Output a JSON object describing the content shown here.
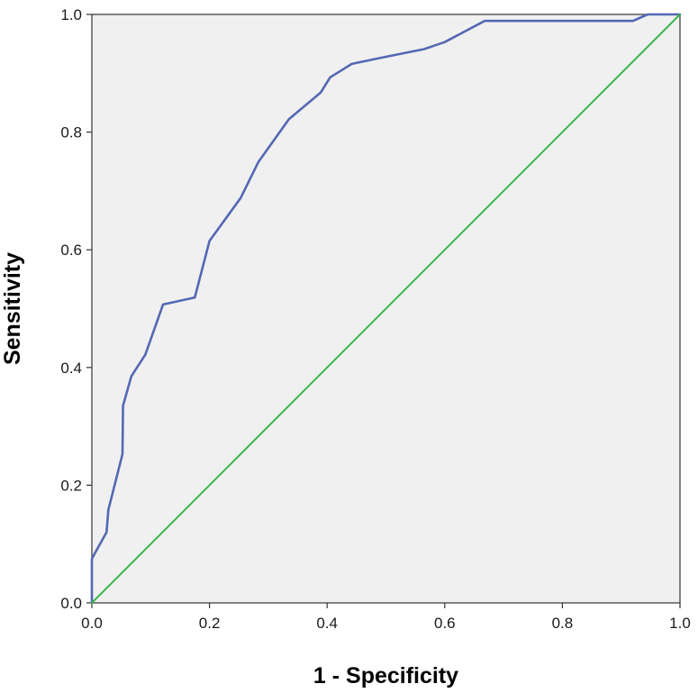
{
  "chart_data": {
    "type": "line",
    "xlabel": "1 - Specificity",
    "ylabel": "Sensitivity",
    "xlim": [
      0,
      1
    ],
    "ylim": [
      0,
      1
    ],
    "grid": false,
    "x_ticks": [
      "0.0",
      "0.2",
      "0.4",
      "0.6",
      "0.8",
      "1.0"
    ],
    "y_ticks": [
      "0.0",
      "0.2",
      "0.4",
      "0.6",
      "0.8",
      "1.0"
    ],
    "background_color": "#f0f0f0",
    "series": [
      {
        "color": "#5468b4",
        "points": [
          [
            0.0,
            0.0
          ],
          [
            0.0,
            0.075
          ],
          [
            0.025,
            0.12
          ],
          [
            0.028,
            0.158
          ],
          [
            0.052,
            0.253
          ],
          [
            0.053,
            0.335
          ],
          [
            0.067,
            0.385
          ],
          [
            0.091,
            0.422
          ],
          [
            0.121,
            0.507
          ],
          [
            0.175,
            0.519
          ],
          [
            0.2,
            0.615
          ],
          [
            0.253,
            0.688
          ],
          [
            0.283,
            0.749
          ],
          [
            0.335,
            0.822
          ],
          [
            0.389,
            0.867
          ],
          [
            0.405,
            0.893
          ],
          [
            0.442,
            0.916
          ],
          [
            0.5,
            0.928
          ],
          [
            0.565,
            0.941
          ],
          [
            0.6,
            0.953
          ],
          [
            0.668,
            0.989
          ],
          [
            0.92,
            0.989
          ],
          [
            0.945,
            1.0
          ],
          [
            1.0,
            1.0
          ]
        ]
      },
      {
        "color": "#3ab54a",
        "points": [
          [
            0,
            0
          ],
          [
            1,
            1
          ]
        ]
      }
    ]
  }
}
